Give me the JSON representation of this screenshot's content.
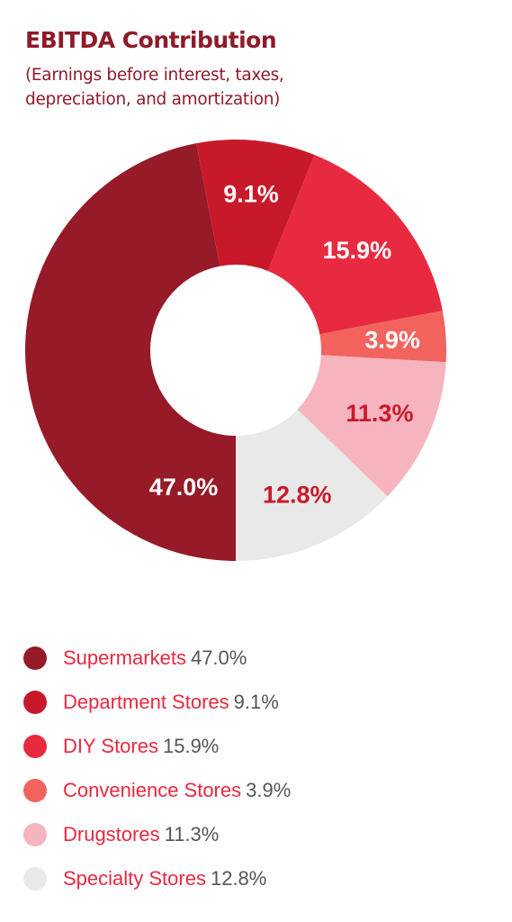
{
  "header": {
    "title": "EBITDA Contribution",
    "subtitle_line1": "(Earnings before interest, taxes,",
    "subtitle_line2": "depreciation, and amortization)"
  },
  "chart_data": {
    "type": "pie",
    "title": "EBITDA Contribution",
    "subtitle": "(Earnings before interest, taxes, depreciation, and amortization)",
    "donut": true,
    "start": "bottom",
    "direction": "clockwise",
    "legend_position": "bottom",
    "slices": [
      {
        "label": "Supermarkets",
        "value": 47.0,
        "display": "47.0%",
        "color": "#961a28",
        "label_color": "#ffffff"
      },
      {
        "label": "Department Stores",
        "value": 9.1,
        "display": "9.1%",
        "color": "#c8192b",
        "label_color": "#ffffff"
      },
      {
        "label": "DIY Stores",
        "value": 15.9,
        "display": "15.9%",
        "color": "#e82a40",
        "label_color": "#ffffff"
      },
      {
        "label": "Convenience Stores",
        "value": 3.9,
        "display": "3.9%",
        "color": "#f2635e",
        "label_color": "#ffffff"
      },
      {
        "label": "Drugstores",
        "value": 11.3,
        "display": "11.3%",
        "color": "#f6b4bf",
        "label_color": "#c8192b"
      },
      {
        "label": "Specialty Stores",
        "value": 12.8,
        "display": "12.8%",
        "color": "#e9e9e9",
        "label_color": "#c8192b"
      }
    ]
  }
}
